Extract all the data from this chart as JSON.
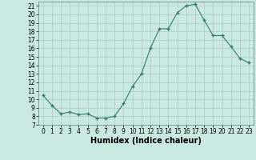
{
  "x": [
    0,
    1,
    2,
    3,
    4,
    5,
    6,
    7,
    8,
    9,
    10,
    11,
    12,
    13,
    14,
    15,
    16,
    17,
    18,
    19,
    20,
    21,
    22,
    23
  ],
  "y": [
    10.5,
    9.3,
    8.3,
    8.5,
    8.2,
    8.3,
    7.8,
    7.8,
    8.0,
    9.5,
    11.5,
    13.0,
    16.0,
    18.3,
    18.3,
    20.2,
    21.0,
    21.2,
    19.3,
    17.5,
    17.5,
    16.2,
    14.8,
    14.3
  ],
  "xlabel": "Humidex (Indice chaleur)",
  "ylim": [
    7,
    21.5
  ],
  "xlim": [
    -0.5,
    23.5
  ],
  "yticks": [
    7,
    8,
    9,
    10,
    11,
    12,
    13,
    14,
    15,
    16,
    17,
    18,
    19,
    20,
    21
  ],
  "xticks": [
    0,
    1,
    2,
    3,
    4,
    5,
    6,
    7,
    8,
    9,
    10,
    11,
    12,
    13,
    14,
    15,
    16,
    17,
    18,
    19,
    20,
    21,
    22,
    23
  ],
  "line_color": "#2E7D6E",
  "marker_color": "#2E7D6E",
  "bg_color": "#C8E8E0",
  "grid_color_major": "#B0CCCC",
  "grid_color_minor": "#C0DDDD",
  "xlabel_fontsize": 7,
  "tick_fontsize": 5.5
}
